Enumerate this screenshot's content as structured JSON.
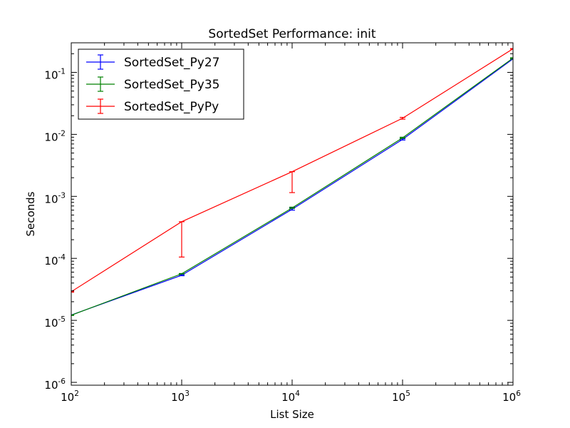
{
  "chart_data": {
    "type": "line",
    "title": "SortedSet Performance: init",
    "xlabel": "List Size",
    "ylabel": "Seconds",
    "xscale": "log",
    "yscale": "log",
    "xlim": [
      100,
      1000000
    ],
    "ylim": [
      9e-07,
      0.3
    ],
    "x_ticks": [
      {
        "value": 100,
        "base": "10",
        "exp": "2"
      },
      {
        "value": 1000,
        "base": "10",
        "exp": "3"
      },
      {
        "value": 10000,
        "base": "10",
        "exp": "4"
      },
      {
        "value": 100000,
        "base": "10",
        "exp": "5"
      },
      {
        "value": 1000000,
        "base": "10",
        "exp": "6"
      }
    ],
    "y_ticks": [
      {
        "value": 1e-06,
        "base": "10",
        "exp": "-6"
      },
      {
        "value": 1e-05,
        "base": "10",
        "exp": "-5"
      },
      {
        "value": 0.0001,
        "base": "10",
        "exp": "-4"
      },
      {
        "value": 0.001,
        "base": "10",
        "exp": "-3"
      },
      {
        "value": 0.01,
        "base": "10",
        "exp": "-2"
      },
      {
        "value": 0.1,
        "base": "10",
        "exp": "-1"
      }
    ],
    "grid": false,
    "legend_position": "top-left",
    "x": [
      100,
      1000,
      10000,
      100000,
      1000000
    ],
    "series": [
      {
        "name": "SortedSet_Py27",
        "color": "#0000ff",
        "values": [
          1.22e-05,
          5.35e-05,
          0.00062,
          0.0083,
          0.165
        ],
        "err_low": [
          1.21e-05,
          5.25e-05,
          0.0006,
          0.0081,
          0.163
        ],
        "err_high": [
          1.23e-05,
          5.45e-05,
          0.00065,
          0.0085,
          0.167
        ]
      },
      {
        "name": "SortedSet_Py35",
        "color": "#008000",
        "values": [
          1.21e-05,
          5.65e-05,
          0.00065,
          0.0088,
          0.17
        ],
        "err_low": [
          1.2e-05,
          5.6e-05,
          0.00064,
          0.0087,
          0.168
        ],
        "err_high": [
          1.22e-05,
          5.7e-05,
          0.00067,
          0.009,
          0.172
        ]
      },
      {
        "name": "SortedSet_PyPy",
        "color": "#ff0000",
        "values": [
          2.9e-05,
          0.00039,
          0.0025,
          0.0182,
          0.24
        ],
        "err_low": [
          2.85e-05,
          0.000105,
          0.00115,
          0.0176,
          0.238
        ],
        "err_high": [
          2.95e-05,
          0.00039,
          0.0025,
          0.0188,
          0.242
        ]
      }
    ]
  }
}
